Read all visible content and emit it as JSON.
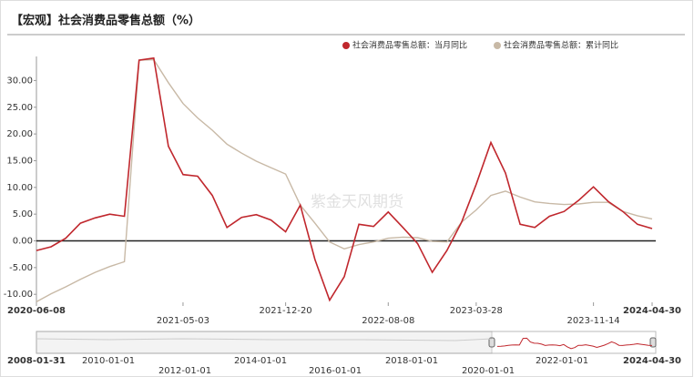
{
  "chart_data": {
    "type": "line",
    "title": "【宏观】社会消费品零售总额（%）",
    "watermark": "紫金天风期货",
    "categories": [
      "2020-06-08",
      null,
      null,
      null,
      null,
      null,
      null,
      null,
      null,
      null,
      "2021-05-03",
      null,
      null,
      null,
      null,
      null,
      null,
      "2021-12-20",
      null,
      null,
      null,
      null,
      null,
      null,
      "2022-08-08",
      null,
      null,
      null,
      null,
      null,
      "2023-03-28",
      null,
      null,
      null,
      null,
      null,
      null,
      null,
      "2023-11-14",
      null,
      null,
      null,
      "2024-04-30"
    ],
    "series": [
      {
        "name": "社会消费品零售总额：当月同比",
        "color": "#c0272d",
        "values": [
          -1.8,
          -1.1,
          0.5,
          3.3,
          4.3,
          5.0,
          4.6,
          33.8,
          34.2,
          17.7,
          12.4,
          12.1,
          8.5,
          2.5,
          4.4,
          4.9,
          3.9,
          1.7,
          6.7,
          -3.5,
          -11.1,
          -6.7,
          3.1,
          2.7,
          5.4,
          2.5,
          -0.5,
          -5.9,
          -1.8,
          3.5,
          10.6,
          18.4,
          12.7,
          3.1,
          2.5,
          4.6,
          5.5,
          7.6,
          10.1,
          7.4,
          5.5,
          3.1,
          2.3
        ]
      },
      {
        "name": "社会消费品零售总额：累计同比",
        "color": "#c8b9a6",
        "values": [
          -11.4,
          -9.9,
          -8.6,
          -7.2,
          -5.9,
          -4.8,
          -3.9,
          33.8,
          33.9,
          29.6,
          25.7,
          23.0,
          20.7,
          18.1,
          16.4,
          14.9,
          13.7,
          12.5,
          6.7,
          3.3,
          -0.2,
          -1.5,
          -0.7,
          -0.2,
          0.5,
          0.7,
          0.6,
          -0.1,
          -0.2,
          3.5,
          5.8,
          8.5,
          9.3,
          8.2,
          7.3,
          7.0,
          6.8,
          6.9,
          7.2,
          7.2,
          5.5,
          4.7,
          4.1
        ]
      }
    ],
    "ylim": [
      -11.5,
      34.5
    ],
    "yticks": [
      {
        "value": -10,
        "label": "-10.00"
      },
      {
        "value": -5,
        "label": "-5.00"
      },
      {
        "value": 0,
        "label": "0.00"
      },
      {
        "value": 5,
        "label": "5.00"
      },
      {
        "value": 10,
        "label": "10.00"
      },
      {
        "value": 15,
        "label": "15.00"
      },
      {
        "value": 20,
        "label": "20.00"
      },
      {
        "value": 25,
        "label": "25.00"
      },
      {
        "value": 30,
        "label": "30.00"
      }
    ],
    "zero_line": true,
    "legend": "top-right",
    "navigator": {
      "labels": [
        "2008-01-31",
        "2010-01-01",
        "2012-01-01",
        "2014-01-01",
        "2016-01-01",
        "2018-01-01",
        "2020-01-01",
        "2022-01-01",
        "2024-04-30"
      ]
    }
  }
}
